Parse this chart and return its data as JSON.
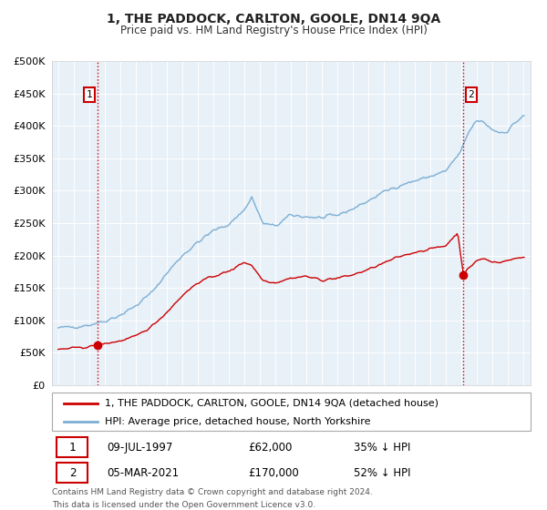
{
  "title": "1, THE PADDOCK, CARLTON, GOOLE, DN14 9QA",
  "subtitle": "Price paid vs. HM Land Registry's House Price Index (HPI)",
  "legend_line1": "1, THE PADDOCK, CARLTON, GOOLE, DN14 9QA (detached house)",
  "legend_line2": "HPI: Average price, detached house, North Yorkshire",
  "sale1_date": "09-JUL-1997",
  "sale1_price": 62000,
  "sale1_pct": "35% ↓ HPI",
  "sale2_date": "05-MAR-2021",
  "sale2_price": 170000,
  "sale2_pct": "52% ↓ HPI",
  "footnote1": "Contains HM Land Registry data © Crown copyright and database right 2024.",
  "footnote2": "This data is licensed under the Open Government Licence v3.0.",
  "hpi_color": "#7bafd4",
  "price_color": "#cc0000",
  "vline1_color": "#cc0000",
  "vline2_color": "#cc0000",
  "plot_bg": "#e8f0f8",
  "grid_color": "#ffffff",
  "fig_bg": "#ffffff",
  "ylim": [
    0,
    500000
  ],
  "yticks": [
    0,
    50000,
    100000,
    150000,
    200000,
    250000,
    300000,
    350000,
    400000,
    450000,
    500000
  ],
  "sale1_year": 1997.52,
  "sale2_year": 2021.17,
  "hpi_anchors_x": [
    1995.0,
    1996.0,
    1997.0,
    1998.0,
    1999.0,
    2000.0,
    2001.0,
    2002.0,
    2003.0,
    2004.0,
    2005.0,
    2006.0,
    2007.0,
    2007.5,
    2008.2,
    2009.0,
    2010.0,
    2011.0,
    2012.0,
    2013.0,
    2014.0,
    2015.0,
    2016.0,
    2017.0,
    2018.0,
    2019.0,
    2020.0,
    2021.0,
    2021.5,
    2022.0,
    2022.5,
    2023.0,
    2023.5,
    2024.0,
    2024.5,
    2025.0
  ],
  "hpi_anchors_y": [
    88000,
    90000,
    93000,
    99000,
    108000,
    122000,
    142000,
    172000,
    200000,
    220000,
    238000,
    248000,
    270000,
    290000,
    250000,
    245000,
    262000,
    260000,
    258000,
    262000,
    272000,
    284000,
    298000,
    308000,
    315000,
    322000,
    330000,
    360000,
    390000,
    408000,
    405000,
    395000,
    390000,
    392000,
    405000,
    415000
  ],
  "price_anchors_x": [
    1995.0,
    1996.0,
    1997.0,
    1997.52,
    1998.0,
    1999.0,
    2000.0,
    2001.0,
    2002.0,
    2003.0,
    2004.0,
    2005.0,
    2006.0,
    2007.0,
    2007.5,
    2008.2,
    2009.0,
    2010.0,
    2011.0,
    2012.0,
    2013.0,
    2014.0,
    2015.0,
    2016.0,
    2017.0,
    2018.0,
    2019.0,
    2020.0,
    2020.8,
    2021.17,
    2021.5,
    2022.0,
    2022.5,
    2023.0,
    2023.5,
    2024.0,
    2024.5,
    2025.0
  ],
  "price_anchors_y": [
    55000,
    57000,
    59000,
    62000,
    64000,
    68000,
    75000,
    90000,
    112000,
    138000,
    158000,
    168000,
    175000,
    190000,
    185000,
    162000,
    158000,
    165000,
    168000,
    162000,
    165000,
    170000,
    178000,
    188000,
    198000,
    205000,
    210000,
    215000,
    235000,
    170000,
    180000,
    192000,
    195000,
    190000,
    190000,
    192000,
    195000,
    198000
  ]
}
